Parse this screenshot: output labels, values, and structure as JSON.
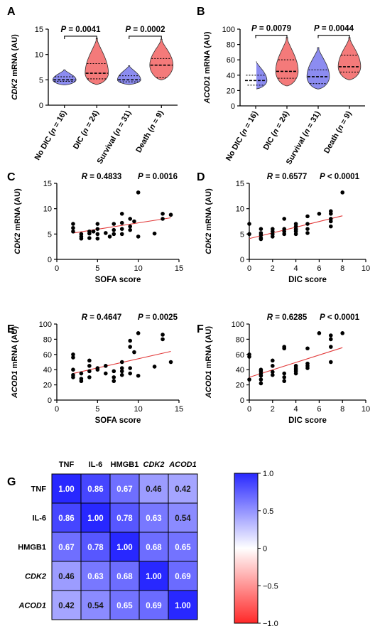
{
  "chart_data": [
    {
      "panel": "A",
      "type": "violin",
      "ylabel_gene": "CDK2",
      "ylabel_rest": " mRNA (AU)",
      "ylim": [
        0,
        15
      ],
      "yticks": [
        0,
        5,
        10,
        15
      ],
      "categories": [
        {
          "name": "No DIC",
          "n": "16",
          "color": "#8c8cf0",
          "min": 4.0,
          "q1": 4.7,
          "median": 5.0,
          "q3": 5.6,
          "max": 7.0
        },
        {
          "name": "DIC",
          "n": "24",
          "color": "#f47a7a",
          "min": 4.1,
          "q1": 5.2,
          "median": 6.3,
          "q3": 8.2,
          "max": 13.2
        },
        {
          "name": "Survival",
          "n": "31",
          "color": "#8c8cf0",
          "min": 4.1,
          "q1": 4.6,
          "median": 5.0,
          "q3": 5.8,
          "max": 7.8
        },
        {
          "name": "Death",
          "n": "9",
          "color": "#f47a7a",
          "min": 5.0,
          "q1": 5.4,
          "median": 7.9,
          "q3": 9.2,
          "max": 13.0
        }
      ],
      "brackets": [
        {
          "text": "P = 0.0041",
          "from": 0,
          "to": 1,
          "y": 13.6
        },
        {
          "text": "P = 0.0002",
          "from": 2,
          "to": 3,
          "y": 13.6
        }
      ]
    },
    {
      "panel": "B",
      "type": "violin",
      "ylabel_gene": "ACOD1",
      "ylabel_rest": " mRNA (AU)",
      "ylim": [
        0,
        100
      ],
      "yticks": [
        0,
        20,
        40,
        60,
        80,
        100
      ],
      "categories": [
        {
          "name": "No DIC",
          "n": "16",
          "color": "#8c8cf0",
          "min": 22,
          "q1": 27,
          "median": 33,
          "q3": 40,
          "max": 59
        },
        {
          "name": "DIC",
          "n": "24",
          "color": "#f47a7a",
          "min": 26,
          "q1": 36,
          "median": 45,
          "q3": 60,
          "max": 89
        },
        {
          "name": "Survival",
          "n": "31",
          "color": "#8c8cf0",
          "min": 22,
          "q1": 29,
          "median": 38,
          "q3": 47,
          "max": 76
        },
        {
          "name": "Death",
          "n": "9",
          "color": "#f47a7a",
          "min": 34,
          "q1": 44,
          "median": 51,
          "q3": 66,
          "max": 89
        }
      ],
      "brackets": [
        {
          "text": "P = 0.0079",
          "from": 0,
          "to": 1,
          "y": 92
        },
        {
          "text": "P = 0.0044",
          "from": 2,
          "to": 3,
          "y": 92
        }
      ]
    },
    {
      "panel": "C",
      "type": "scatter",
      "xlabel": "SOFA score",
      "ylabel_gene": "CDK2",
      "ylabel_rest": " mRNA (AU)",
      "xlim": [
        0,
        15
      ],
      "xticks": [
        0,
        5,
        10,
        15
      ],
      "ylim": [
        0,
        15
      ],
      "yticks": [
        0,
        5,
        10,
        15
      ],
      "stats": {
        "r": "R = 0.4833",
        "p": "P = 0.0016"
      },
      "fit": [
        [
          2,
          5.2
        ],
        [
          14,
          8.2
        ]
      ],
      "points": [
        [
          2,
          7.0
        ],
        [
          2,
          6.2
        ],
        [
          2,
          5.5
        ],
        [
          3,
          5.0
        ],
        [
          3,
          4.5
        ],
        [
          3,
          4.1
        ],
        [
          4,
          5.5
        ],
        [
          4,
          5.1
        ],
        [
          4,
          4.2
        ],
        [
          4.5,
          5.5
        ],
        [
          5,
          7.0
        ],
        [
          5,
          6.0
        ],
        [
          5,
          5.0
        ],
        [
          5,
          4.1
        ],
        [
          6,
          5.2
        ],
        [
          6.5,
          4.5
        ],
        [
          7,
          7.0
        ],
        [
          7,
          5.8
        ],
        [
          7,
          5.0
        ],
        [
          8,
          9.0
        ],
        [
          8,
          7.2
        ],
        [
          8,
          6.0
        ],
        [
          8,
          5.0
        ],
        [
          9,
          8.0
        ],
        [
          9,
          6.5
        ],
        [
          9,
          5.8
        ],
        [
          9.5,
          7.5
        ],
        [
          10,
          13.2
        ],
        [
          10,
          4.5
        ],
        [
          12,
          5.1
        ],
        [
          13,
          9.0
        ],
        [
          13,
          8.0
        ],
        [
          14,
          8.8
        ]
      ]
    },
    {
      "panel": "D",
      "type": "scatter",
      "xlabel": "DIC score",
      "ylabel_gene": "CDK2",
      "ylabel_rest": " mRNA (AU)",
      "xlim": [
        0,
        10
      ],
      "xticks": [
        0,
        2,
        4,
        6,
        8,
        10
      ],
      "ylim": [
        0,
        15
      ],
      "yticks": [
        0,
        5,
        10,
        15
      ],
      "stats": {
        "r": "R = 0.6577",
        "p": "P < 0.0001"
      },
      "fit": [
        [
          0,
          4.1
        ],
        [
          8,
          8.6
        ]
      ],
      "points": [
        [
          0,
          7.0
        ],
        [
          0,
          5.0
        ],
        [
          1,
          6.0
        ],
        [
          1,
          5.2
        ],
        [
          1,
          4.8
        ],
        [
          1,
          4.2
        ],
        [
          1,
          4.0
        ],
        [
          2,
          6.0
        ],
        [
          2,
          5.5
        ],
        [
          2,
          5.0
        ],
        [
          2,
          4.5
        ],
        [
          3,
          8.0
        ],
        [
          3,
          6.0
        ],
        [
          3,
          5.5
        ],
        [
          3,
          5.0
        ],
        [
          4,
          7.0
        ],
        [
          4,
          6.5
        ],
        [
          4,
          6.0
        ],
        [
          4,
          5.8
        ],
        [
          4,
          5.5
        ],
        [
          4,
          5.0
        ],
        [
          5,
          8.5
        ],
        [
          5,
          7.0
        ],
        [
          5,
          6.0
        ],
        [
          5,
          5.2
        ],
        [
          6,
          9.0
        ],
        [
          7,
          9.5
        ],
        [
          7,
          9.0
        ],
        [
          7,
          8.0
        ],
        [
          7,
          7.5
        ],
        [
          7,
          6.5
        ],
        [
          8,
          13.2
        ]
      ]
    },
    {
      "panel": "E",
      "type": "scatter",
      "xlabel": "SOFA score",
      "ylabel_gene": "ACOD1",
      "ylabel_rest": " mRNA (AU)",
      "xlim": [
        0,
        15
      ],
      "xticks": [
        0,
        5,
        10,
        15
      ],
      "ylim": [
        0,
        100
      ],
      "yticks": [
        0,
        20,
        40,
        60,
        80,
        100
      ],
      "stats": {
        "r": "R = 0.4647",
        "p": "P = 0.0025"
      },
      "fit": [
        [
          2,
          35
        ],
        [
          14,
          64
        ]
      ],
      "points": [
        [
          2,
          60
        ],
        [
          2,
          56
        ],
        [
          2,
          40
        ],
        [
          2,
          33
        ],
        [
          2,
          30
        ],
        [
          3,
          35
        ],
        [
          3,
          28
        ],
        [
          3,
          25
        ],
        [
          4,
          52
        ],
        [
          4,
          45
        ],
        [
          4,
          38
        ],
        [
          4,
          30
        ],
        [
          5,
          42
        ],
        [
          5,
          40
        ],
        [
          6,
          45
        ],
        [
          6,
          35
        ],
        [
          7,
          38
        ],
        [
          7,
          30
        ],
        [
          7,
          25
        ],
        [
          8,
          50
        ],
        [
          8,
          42
        ],
        [
          8,
          38
        ],
        [
          8,
          33
        ],
        [
          9,
          78
        ],
        [
          9,
          70
        ],
        [
          9,
          42
        ],
        [
          9,
          35
        ],
        [
          9.5,
          63
        ],
        [
          10,
          88
        ],
        [
          10,
          32
        ],
        [
          12,
          44
        ],
        [
          13,
          86
        ],
        [
          13,
          80
        ],
        [
          14,
          50
        ]
      ]
    },
    {
      "panel": "F",
      "type": "scatter",
      "xlabel": "DIC score",
      "ylabel_gene": "ACOD1",
      "ylabel_rest": " mRNA (AU)",
      "xlim": [
        0,
        10
      ],
      "xticks": [
        0,
        2,
        4,
        6,
        8,
        10
      ],
      "ylim": [
        0,
        100
      ],
      "yticks": [
        0,
        20,
        40,
        60,
        80,
        100
      ],
      "stats": {
        "r": "R = 0.6285",
        "p": "P < 0.0001"
      },
      "fit": [
        [
          0,
          30
        ],
        [
          8,
          69
        ]
      ],
      "points": [
        [
          0,
          60
        ],
        [
          0,
          57
        ],
        [
          0,
          27
        ],
        [
          1,
          40
        ],
        [
          1,
          38
        ],
        [
          1,
          35
        ],
        [
          1,
          32
        ],
        [
          1,
          27
        ],
        [
          1,
          22
        ],
        [
          2,
          52
        ],
        [
          2,
          45
        ],
        [
          2,
          37
        ],
        [
          2,
          33
        ],
        [
          3,
          70
        ],
        [
          3,
          68
        ],
        [
          3,
          35
        ],
        [
          3,
          30
        ],
        [
          3,
          25
        ],
        [
          4,
          45
        ],
        [
          4,
          42
        ],
        [
          4,
          40
        ],
        [
          4,
          38
        ],
        [
          4,
          35
        ],
        [
          5,
          68
        ],
        [
          5,
          48
        ],
        [
          5,
          45
        ],
        [
          5,
          42
        ],
        [
          6,
          88
        ],
        [
          7,
          85
        ],
        [
          7,
          80
        ],
        [
          7,
          70
        ],
        [
          7,
          50
        ],
        [
          8,
          88
        ]
      ]
    },
    {
      "panel": "G",
      "type": "heatmap",
      "labels": [
        {
          "text": "TNF",
          "italic": false
        },
        {
          "text": "IL-6",
          "italic": false
        },
        {
          "text": "HMGB1",
          "italic": false
        },
        {
          "text": "CDK2",
          "italic": true
        },
        {
          "text": "ACOD1",
          "italic": true
        }
      ],
      "matrix": [
        [
          "1.00",
          "0.86",
          "0.67",
          "0.46",
          "0.42"
        ],
        [
          "0.86",
          "1.00",
          "0.78",
          "0.63",
          "0.54"
        ],
        [
          "0.67",
          "0.78",
          "1.00",
          "0.68",
          "0.65"
        ],
        [
          "0.46",
          "0.63",
          "0.68",
          "1.00",
          "0.69"
        ],
        [
          "0.42",
          "0.54",
          "0.65",
          "0.69",
          "1.00"
        ]
      ],
      "colorbar": {
        "range": [
          -1,
          1
        ],
        "ticks": [
          "1.0",
          "0.5",
          "0",
          "−0.5",
          "−1.0"
        ],
        "tick_values": [
          1,
          0.5,
          0,
          -0.5,
          -1
        ]
      }
    }
  ]
}
